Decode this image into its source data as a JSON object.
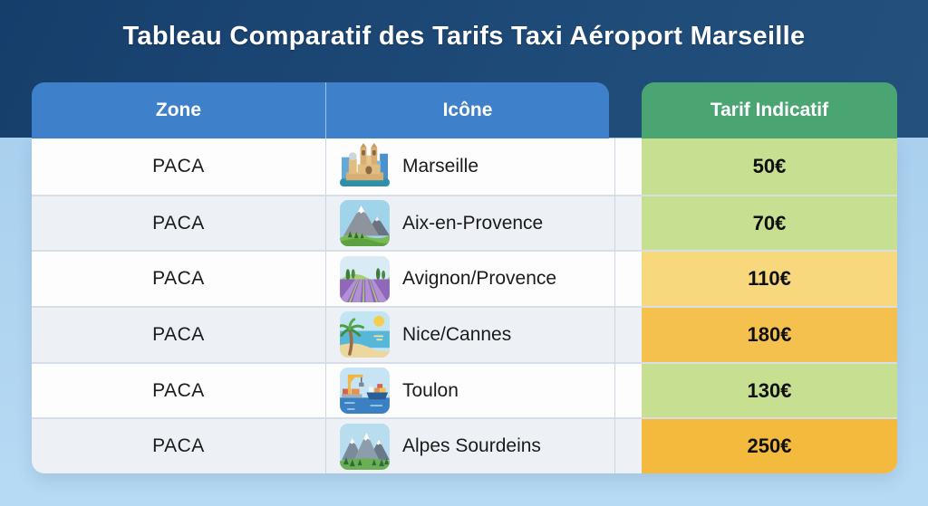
{
  "title": "Tableau Comparatif des Tarifs Taxi Aéroport Marseille",
  "table": {
    "headers": {
      "zone": "Zone",
      "icon": "Icône",
      "tarif": "Tarif Indicatif"
    },
    "rows": [
      {
        "zone": "PACA",
        "city": "Marseille",
        "tarif": "50€",
        "icon": "marseille-cathedral-icon",
        "tier": "green"
      },
      {
        "zone": "PACA",
        "city": "Aix-en-Provence",
        "tarif": "70€",
        "icon": "mountain-icon",
        "tier": "green"
      },
      {
        "zone": "PACA",
        "city": "Avignon/Provence",
        "tarif": "110€",
        "icon": "lavender-field-icon",
        "tier": "lightamber"
      },
      {
        "zone": "PACA",
        "city": "Nice/Cannes",
        "tarif": "180€",
        "icon": "beach-palm-icon",
        "tier": "amber"
      },
      {
        "zone": "PACA",
        "city": "Toulon",
        "tarif": "130€",
        "icon": "harbor-port-icon",
        "tier": "green"
      },
      {
        "zone": "PACA",
        "city": "Alpes Sourdeins",
        "tarif": "250€",
        "icon": "alps-mountains-icon",
        "tier": "orange"
      }
    ]
  },
  "colors": {
    "band_navy": "#1e4a78",
    "page_blue": "#aed3f1",
    "header_blue": "#3e80ca",
    "header_green": "#4aa573",
    "tiers": {
      "green": "#c6df90",
      "lightamber": "#f8d87c",
      "amber": "#f4c14f",
      "orange": "#f3ba3d"
    }
  }
}
